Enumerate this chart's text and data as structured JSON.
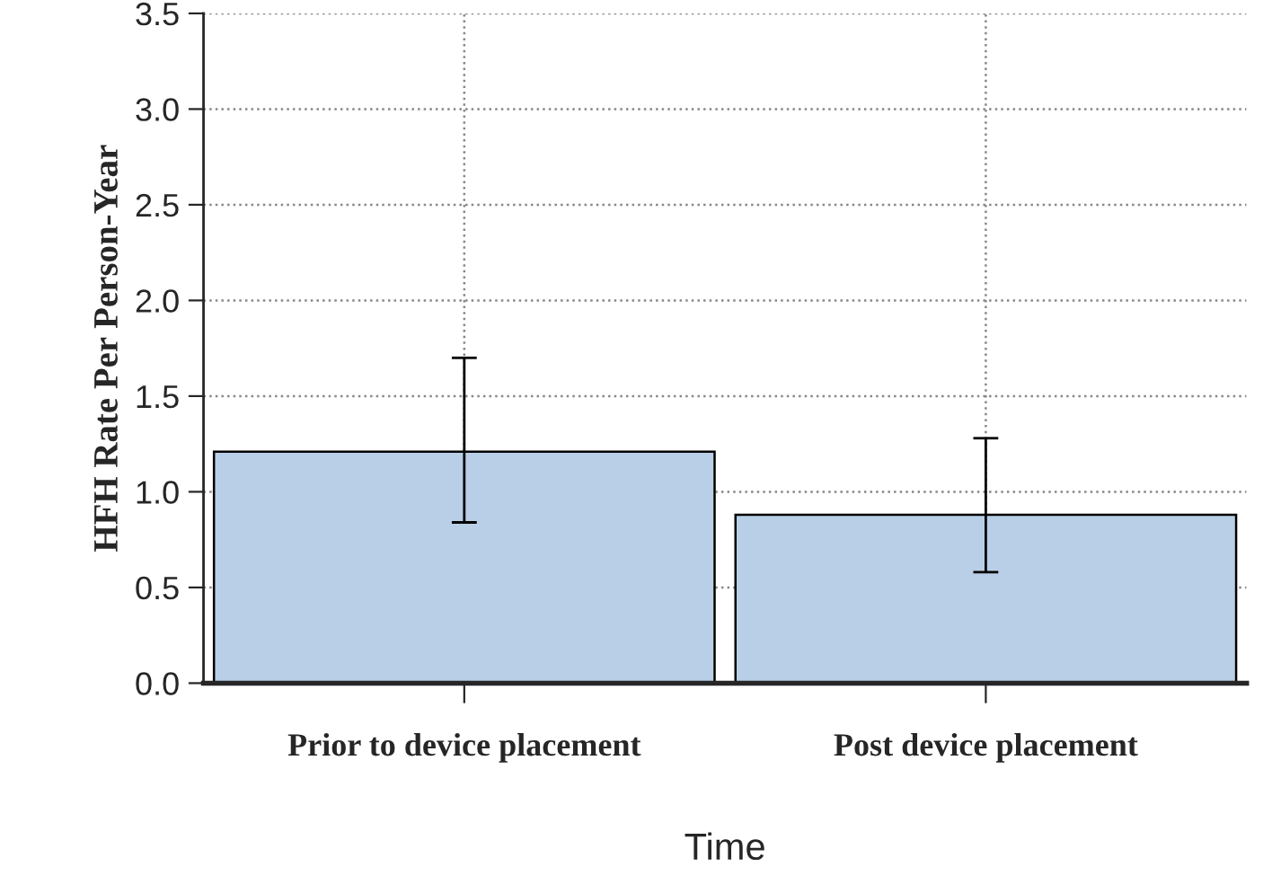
{
  "chart_data": {
    "type": "bar",
    "categories": [
      "Prior to device placement",
      "Post device placement"
    ],
    "values": [
      1.21,
      0.88
    ],
    "errors": [
      [
        0.84,
        1.7
      ],
      [
        0.58,
        1.28
      ]
    ],
    "color": "#b9cfe7",
    "xlabel": "Time",
    "ylabel": "HFH Rate Per Person-Year",
    "ylim": [
      0,
      3.5
    ],
    "yticks": [
      {
        "value": 0,
        "label": "0.0"
      },
      {
        "value": 0.5,
        "label": "0.5"
      },
      {
        "value": 1,
        "label": "1.0"
      },
      {
        "value": 1.5,
        "label": "1.5"
      },
      {
        "value": 2,
        "label": "2.0"
      },
      {
        "value": 2.5,
        "label": "2.5"
      },
      {
        "value": 3,
        "label": "3.0"
      },
      {
        "value": 3.5,
        "label": "3.5"
      }
    ],
    "grid": true
  }
}
